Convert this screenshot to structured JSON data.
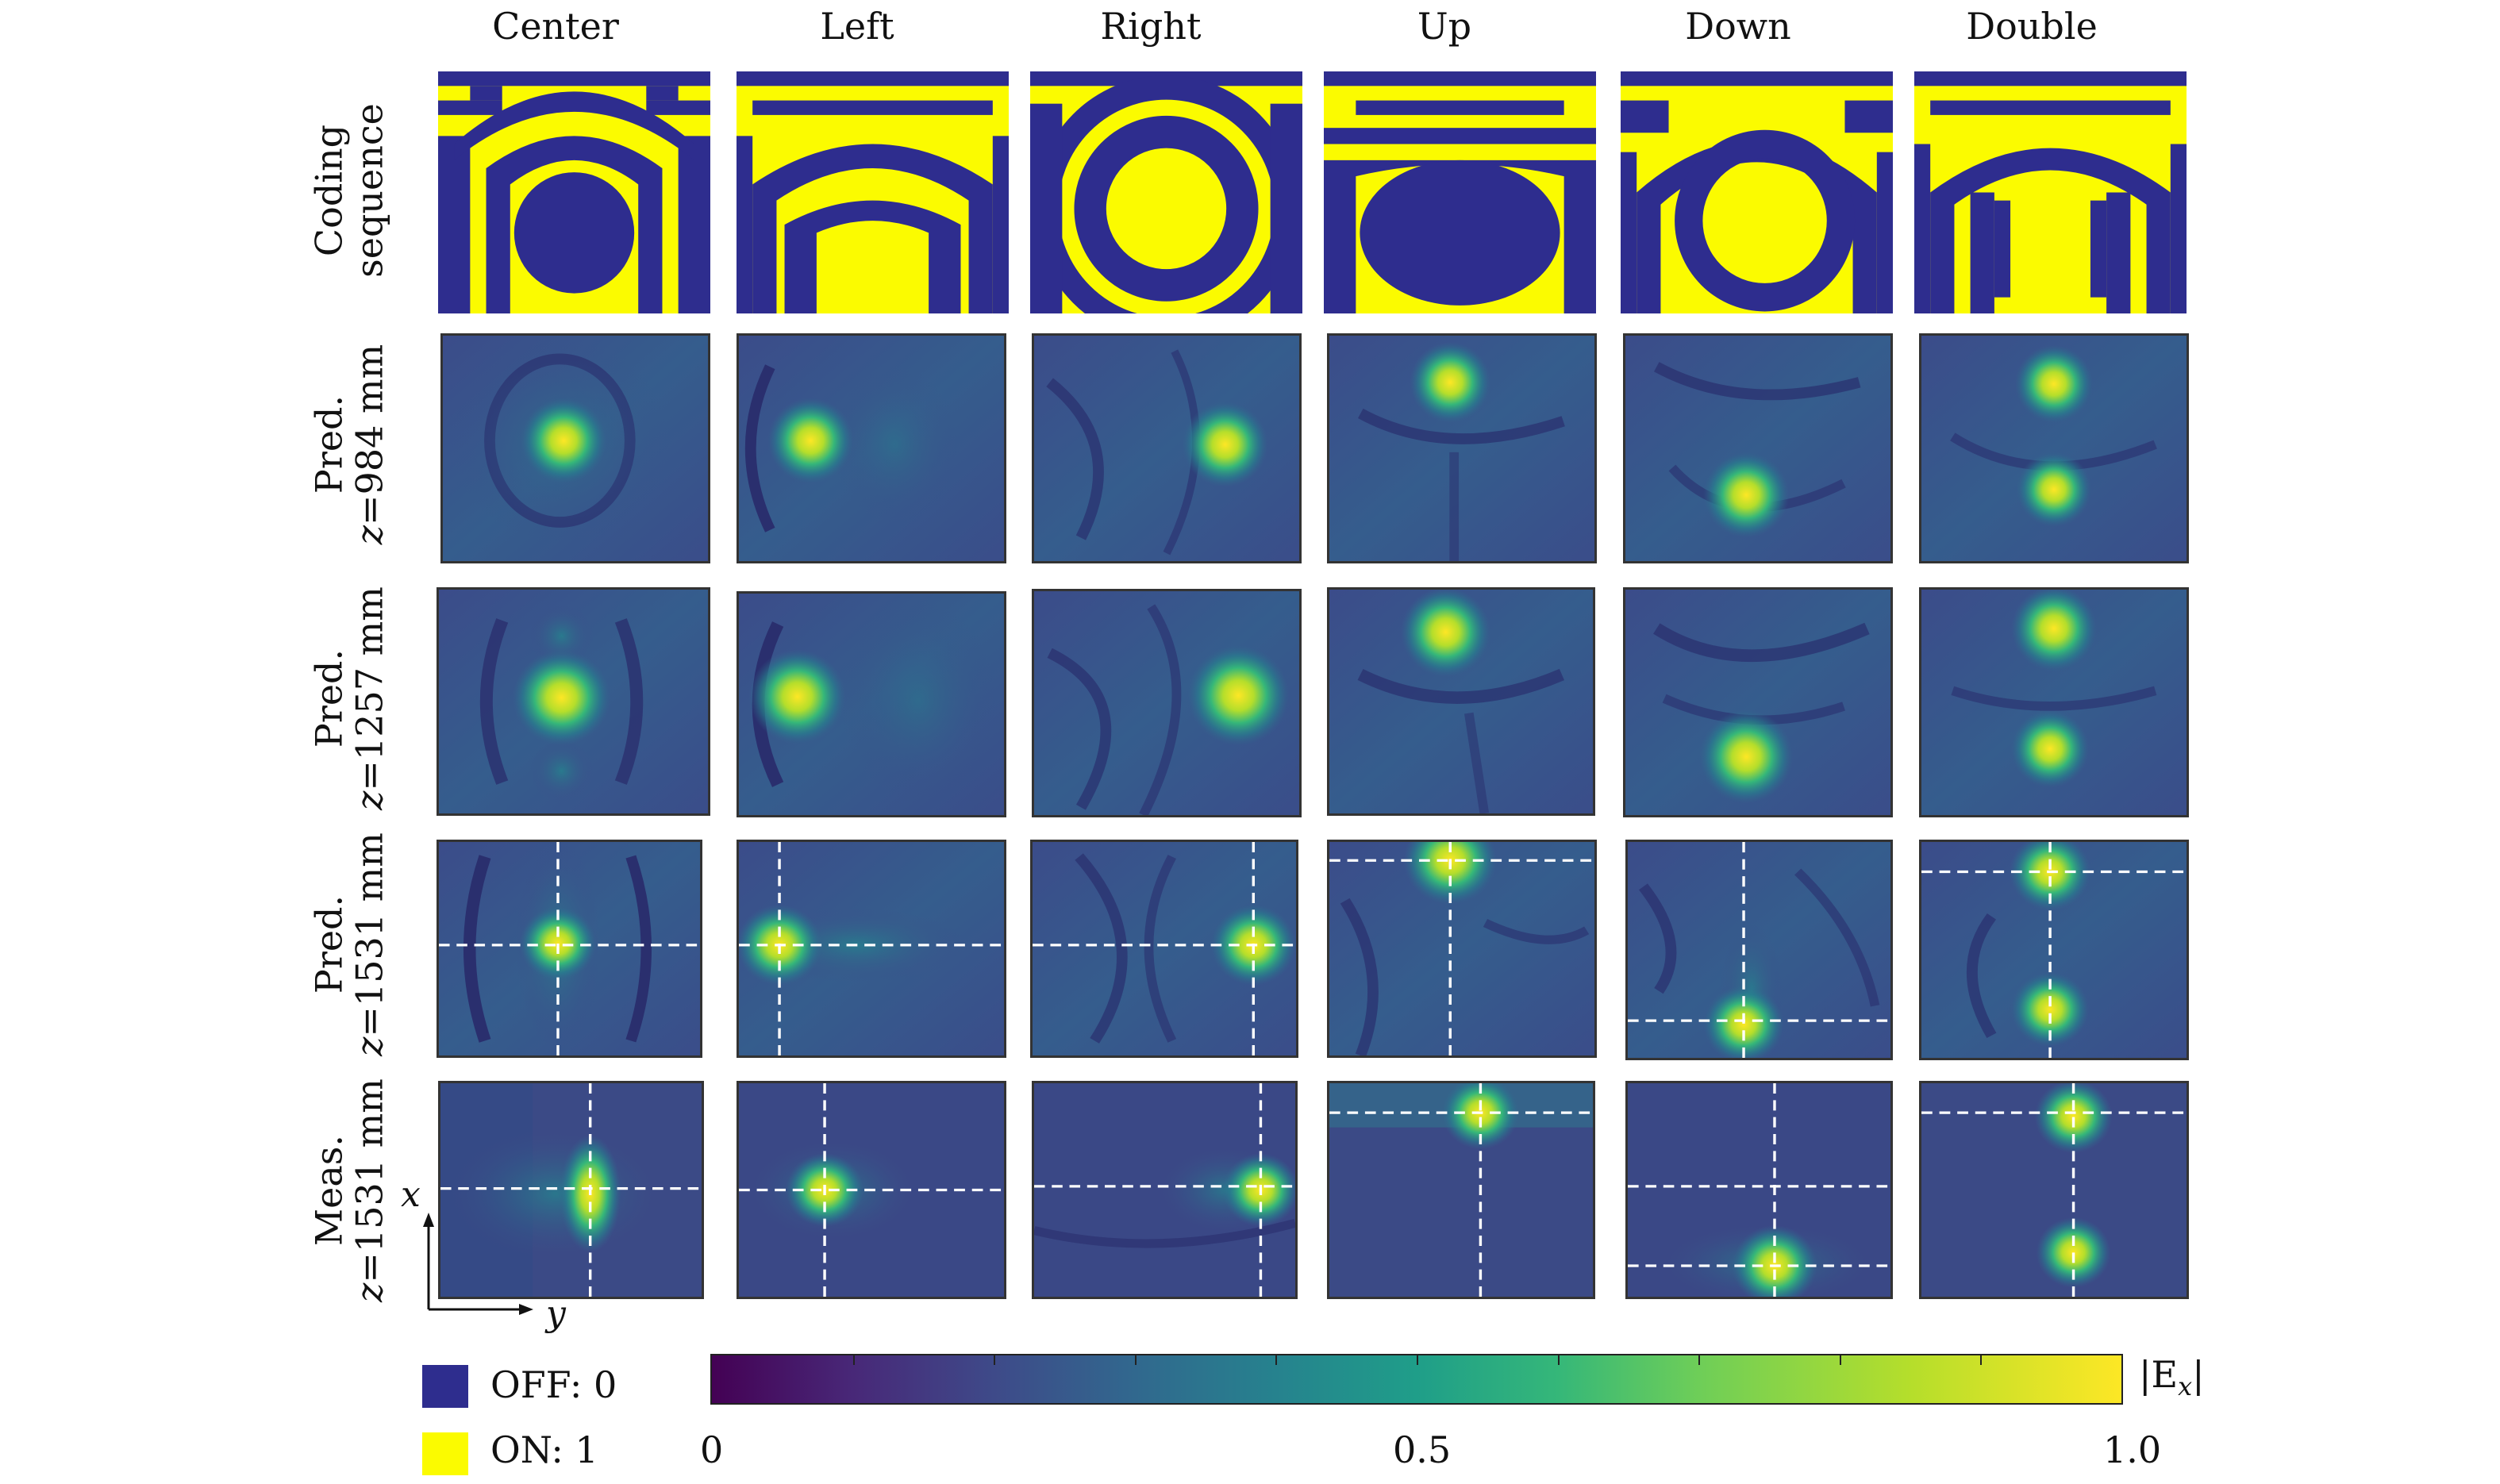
{
  "columns": [
    "Center",
    "Left",
    "Right",
    "Up",
    "Down",
    "Double"
  ],
  "rows": [
    {
      "line1": "Coding",
      "line2": "sequence"
    },
    {
      "line1": "Pred.",
      "line2_var": "z",
      "line2_rest": "=984 mm"
    },
    {
      "line1": "Pred.",
      "line2_var": "z",
      "line2_rest": "=1257 mm"
    },
    {
      "line1": "Pred.",
      "line2_var": "z",
      "line2_rest": "=1531 mm"
    },
    {
      "line1": "Meas.",
      "line2_var": "z",
      "line2_rest": "=1531 mm"
    }
  ],
  "legend": [
    {
      "label": "OFF: 0",
      "color": "#2e2d8e"
    },
    {
      "label": "ON: 1",
      "color": "#fbfb00"
    }
  ],
  "colorbar": {
    "label": "|E",
    "label_sub": "x",
    "label_end": "|",
    "ticks": [
      "0",
      "0.5",
      "1.0"
    ],
    "range": [
      0,
      1.0
    ],
    "colormap": "viridis"
  },
  "axes": {
    "x": "x",
    "y": "y"
  },
  "colors": {
    "off": "#2e2d8e",
    "on": "#fbfb00",
    "crosshair": "#ffffff"
  }
}
